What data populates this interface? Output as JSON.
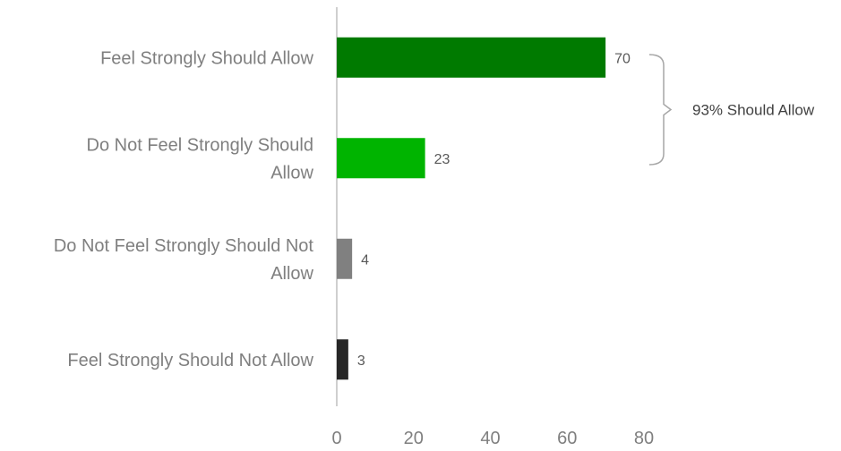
{
  "chart_data": {
    "type": "bar",
    "orientation": "horizontal",
    "categories": [
      [
        "Feel Strongly Should Allow"
      ],
      [
        "Do Not Feel Strongly Should",
        "Allow"
      ],
      [
        "Do Not Feel Strongly Should Not",
        "Allow"
      ],
      [
        "Feel Strongly Should Not Allow"
      ]
    ],
    "values": [
      70,
      23,
      4,
      3
    ],
    "colors": [
      "#007a00",
      "#00b400",
      "#808080",
      "#262626"
    ],
    "xlim": [
      0,
      80
    ],
    "xticks": [
      0,
      20,
      40,
      60,
      80
    ],
    "data_labels": true,
    "grid": false,
    "annotation": {
      "text": "93% Should Allow",
      "spans": [
        "Feel Strongly Should Allow",
        "Do Not Feel Strongly Should Allow"
      ]
    }
  }
}
